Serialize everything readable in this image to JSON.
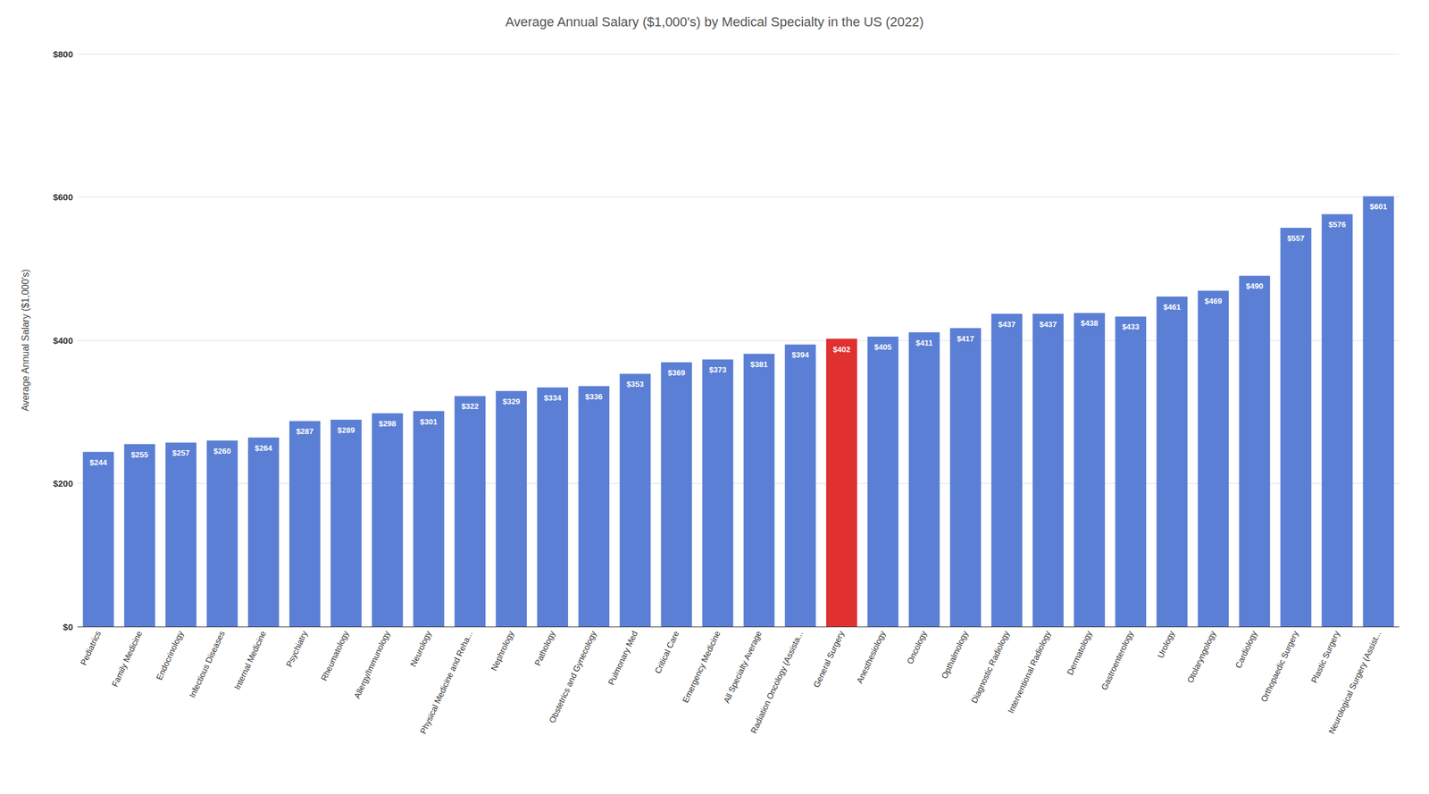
{
  "chart_data": {
    "type": "bar",
    "title": "Average Annual Salary ($1,000's) by Medical Specialty in the US (2022)",
    "ylabel": "Average Annual Salary ($1,000's)",
    "categories": [
      "Pediatrics",
      "Family Medicine",
      "Endocrinology",
      "Infectious Diseases",
      "Internal Medicine",
      "Psychiatry",
      "Rheumatology",
      "Allergy/Immunology",
      "Neurology",
      "Physical Medicine and Reha...",
      "Nephrology",
      "Pathology",
      "Obstetrics and Gynecology",
      "Pulmonary Med",
      "Critical Care",
      "Emergency Medicine",
      "All Specialty Average",
      "Radiation Oncology (Assista...",
      "General Surgery",
      "Anesthesiology",
      "Oncology",
      "Opthalmology",
      "Diagnostic Radiology",
      "Interventional Radiology",
      "Dermatology",
      "Gastroenterology",
      "Urology",
      "Otolaryngology",
      "Cardiology",
      "Orthopaedic Surgery",
      "Plastic Surgery",
      "Neurological Surgery (Assist..."
    ],
    "values": [
      244,
      255,
      257,
      260,
      264,
      287,
      289,
      298,
      301,
      322,
      329,
      334,
      336,
      353,
      369,
      373,
      381,
      394,
      402,
      405,
      411,
      417,
      437,
      437,
      438,
      433,
      461,
      469,
      490,
      557,
      576,
      601
    ],
    "value_labels": [
      "$244",
      "$255",
      "$257",
      "$260",
      "$264",
      "$287",
      "$289",
      "$298",
      "$301",
      "$322",
      "$329",
      "$334",
      "$336",
      "$353",
      "$369",
      "$373",
      "$381",
      "$394",
      "$402",
      "$405",
      "$411",
      "$417",
      "$437",
      "$437",
      "$438",
      "$433",
      "$461",
      "$469",
      "$490",
      "$557",
      "$576",
      "$601"
    ],
    "colors": [
      "#5B7FD4",
      "#5B7FD4",
      "#5B7FD4",
      "#5B7FD4",
      "#5B7FD4",
      "#5B7FD4",
      "#5B7FD4",
      "#5B7FD4",
      "#5B7FD4",
      "#5B7FD4",
      "#5B7FD4",
      "#5B7FD4",
      "#5B7FD4",
      "#5B7FD4",
      "#5B7FD4",
      "#5B7FD4",
      "#5B7FD4",
      "#5B7FD4",
      "#E03030",
      "#5B7FD4",
      "#5B7FD4",
      "#5B7FD4",
      "#5B7FD4",
      "#5B7FD4",
      "#5B7FD4",
      "#5B7FD4",
      "#5B7FD4",
      "#5B7FD4",
      "#5B7FD4",
      "#5B7FD4",
      "#5B7FD4",
      "#5B7FD4"
    ],
    "ylim": [
      0,
      800
    ],
    "yticks": [
      {
        "value": 0,
        "label": "$0"
      },
      {
        "value": 200,
        "label": "$200"
      },
      {
        "value": 400,
        "label": "$400"
      },
      {
        "value": 600,
        "label": "$600"
      },
      {
        "value": 800,
        "label": "$800"
      }
    ],
    "grid": true,
    "data_labels": true
  }
}
